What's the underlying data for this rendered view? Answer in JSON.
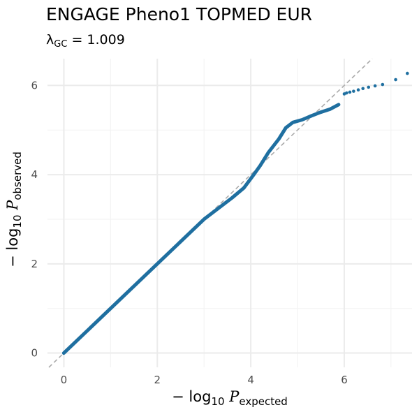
{
  "chart_data": {
    "type": "scatter",
    "title": "ENGAGE Pheno1 TOPMED EUR",
    "subtitle": {
      "lambda_symbol": "λ",
      "lambda_subscript": "GC",
      "equals": " = ",
      "value": "1.009"
    },
    "xlabel": {
      "prefix": "− log",
      "sub_base": "10",
      "italic": "P",
      "subscript": "expected"
    },
    "ylabel": {
      "prefix": "− log",
      "sub_base": "10",
      "italic": "P",
      "subscript": "observed"
    },
    "xlim": [
      -0.35,
      7.45
    ],
    "ylim": [
      -0.32,
      6.6
    ],
    "x_ticks": [
      0,
      2,
      4,
      6
    ],
    "x_tick_labels": [
      "0",
      "2",
      "4",
      "6"
    ],
    "y_ticks": [
      0,
      2,
      4,
      6
    ],
    "y_tick_labels": [
      "0",
      "2",
      "4",
      "6"
    ],
    "grid": true,
    "reference_line": {
      "slope": 1,
      "intercept": 0,
      "style": "dashed",
      "color": "#aaaaaa"
    },
    "point_color": "#1f6fa0",
    "curve": [
      [
        0.0,
        0.0
      ],
      [
        3.0,
        3.0
      ],
      [
        3.6,
        3.48
      ],
      [
        3.85,
        3.7
      ],
      [
        4.05,
        3.98
      ],
      [
        4.2,
        4.2
      ],
      [
        4.38,
        4.5
      ],
      [
        4.6,
        4.8
      ],
      [
        4.75,
        5.05
      ],
      [
        4.9,
        5.17
      ],
      [
        5.1,
        5.23
      ],
      [
        5.3,
        5.32
      ],
      [
        5.5,
        5.4
      ],
      [
        5.7,
        5.47
      ],
      [
        5.88,
        5.57
      ]
    ],
    "sparse_points": [
      [
        6.0,
        5.81
      ],
      [
        6.05,
        5.83
      ],
      [
        6.12,
        5.85
      ],
      [
        6.2,
        5.87
      ],
      [
        6.3,
        5.9
      ],
      [
        6.4,
        5.93
      ],
      [
        6.52,
        5.96
      ],
      [
        6.66,
        5.99
      ],
      [
        6.82,
        6.02
      ],
      [
        7.1,
        6.13
      ],
      [
        7.35,
        6.27
      ]
    ]
  }
}
